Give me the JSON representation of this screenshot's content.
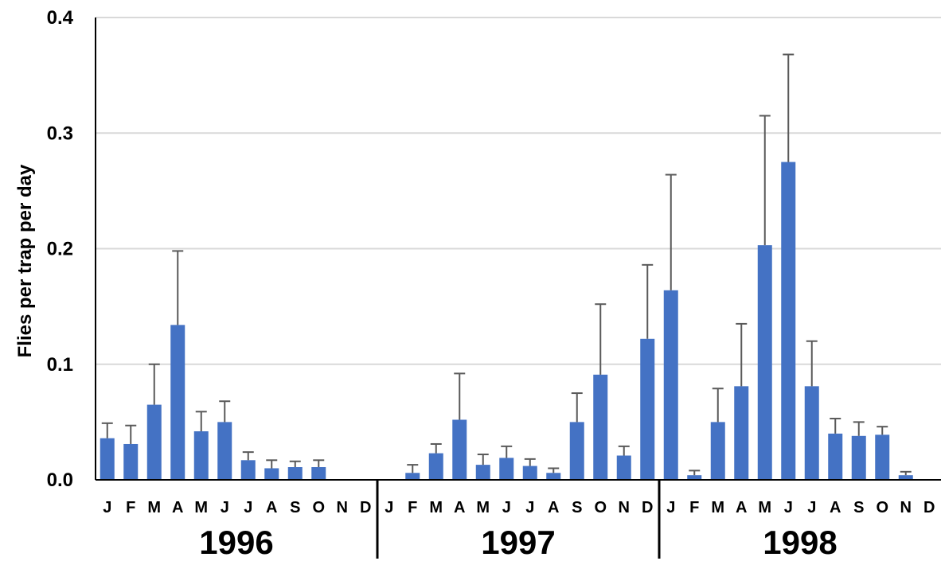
{
  "chart_data": {
    "type": "bar",
    "title": "",
    "ylabel": "Flies per trap per day",
    "xlabel": "",
    "ylim": [
      0,
      0.4
    ],
    "y_ticks": [
      "0.0",
      "0.1",
      "0.2",
      "0.3",
      "0.4"
    ],
    "grid": true,
    "years": [
      "1996",
      "1997",
      "1998"
    ],
    "categories": [
      "J",
      "F",
      "M",
      "A",
      "M",
      "J",
      "J",
      "A",
      "S",
      "O",
      "N",
      "D",
      "J",
      "F",
      "M",
      "A",
      "M",
      "J",
      "J",
      "A",
      "S",
      "O",
      "N",
      "D",
      "J",
      "F",
      "M",
      "A",
      "M",
      "J",
      "J",
      "A",
      "S",
      "O",
      "N",
      "D"
    ],
    "values": [
      0.036,
      0.031,
      0.065,
      0.134,
      0.042,
      0.05,
      0.017,
      0.01,
      0.011,
      0.011,
      null,
      null,
      null,
      0.006,
      0.023,
      0.052,
      0.013,
      0.019,
      0.012,
      0.006,
      0.05,
      0.091,
      0.021,
      0.122,
      0.164,
      0.004,
      0.05,
      0.081,
      0.203,
      0.275,
      0.081,
      0.04,
      0.038,
      0.039,
      0.004,
      null
    ],
    "error_upper": [
      0.049,
      0.047,
      0.1,
      0.198,
      0.059,
      0.068,
      0.024,
      0.017,
      0.016,
      0.017,
      null,
      null,
      null,
      0.013,
      0.031,
      0.092,
      0.022,
      0.029,
      0.018,
      0.01,
      0.075,
      0.152,
      0.029,
      0.186,
      0.264,
      0.008,
      0.079,
      0.135,
      0.315,
      0.368,
      0.12,
      0.053,
      0.05,
      0.046,
      0.007,
      null
    ],
    "bar_color": "#4472C4",
    "error_color": "#595959",
    "grid_color": "#d9d9d9"
  }
}
